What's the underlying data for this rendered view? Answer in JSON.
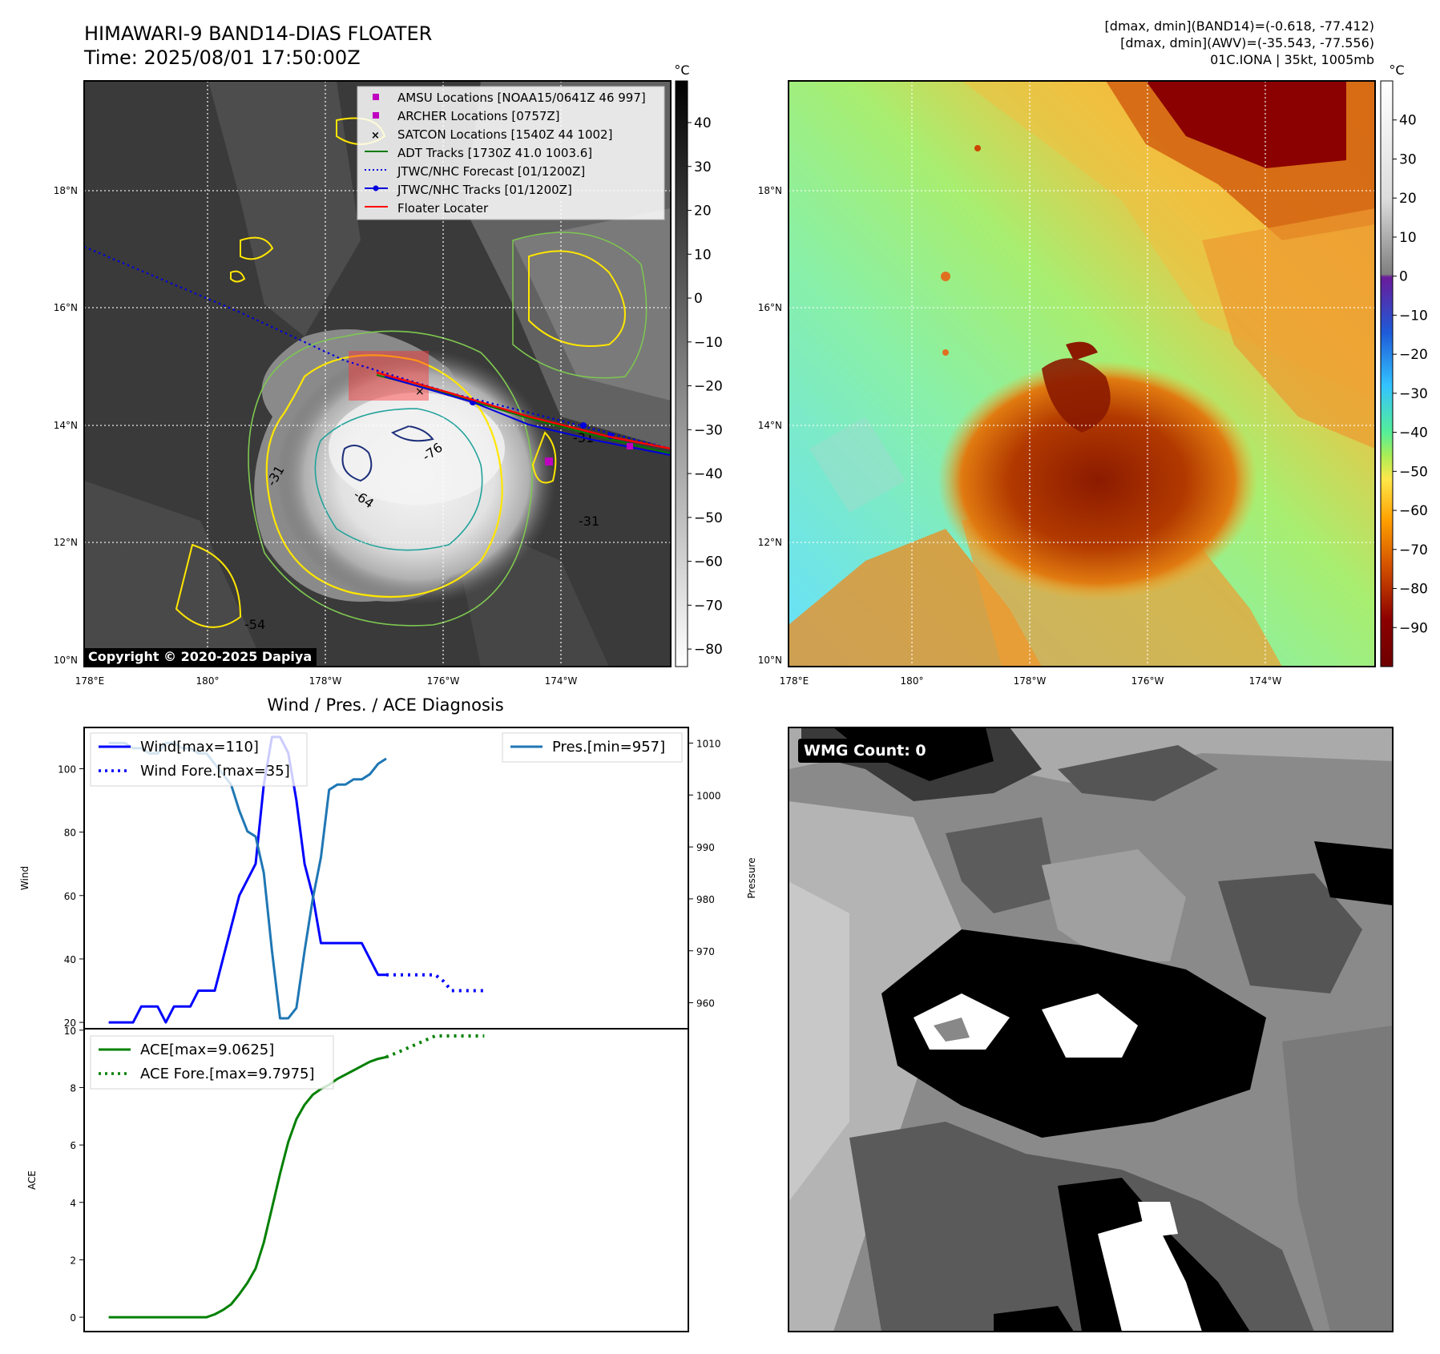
{
  "header": {
    "title": "HIMAWARI-9 BAND14-DIAS FLOATER",
    "time": "Time: 2025/08/01 17:50:00Z",
    "stats": [
      "[dmax, dmin](BAND14)=(-0.618, -77.412)",
      "[dmax, dmin](AWV)=(-35.543, -77.556)",
      "01C.IONA | 35kt, 1005mb"
    ]
  },
  "map_ir": {
    "lat_labels": [
      "18°N",
      "16°N",
      "14°N",
      "12°N",
      "10°N"
    ],
    "lon_labels": [
      "178°E",
      "180°",
      "178°W",
      "176°W",
      "174°W"
    ],
    "colorbar": {
      "unit": "°C",
      "ticks": [
        "40",
        "30",
        "20",
        "10",
        "0",
        "−10",
        "−20",
        "−30",
        "−40",
        "−50",
        "−60",
        "−70",
        "−80"
      ]
    },
    "legend": [
      {
        "label": "AMSU Locations [NOAA15/0641Z 46 997]",
        "color": "#c000c0",
        "marker": "square"
      },
      {
        "label": "ARCHER Locations [0757Z]",
        "color": "#c000c0",
        "marker": "square"
      },
      {
        "label": "SATCON Locations [1540Z 44 1002]",
        "color": "#17becf",
        "marker": "x"
      },
      {
        "label": "ADT Tracks [1730Z 41.0 1003.6]",
        "color": "#007a00",
        "marker": "line"
      },
      {
        "label": "JTWC/NHC Forecast [01/1200Z]",
        "color": "#0000dd",
        "marker": "dotted"
      },
      {
        "label": "JTWC/NHC Tracks [01/1200Z]",
        "color": "#0000dd",
        "marker": "line-dot"
      },
      {
        "label": "Floater Locater",
        "color": "#ff0000",
        "marker": "line"
      }
    ],
    "contour_labels": [
      "-76",
      "-64",
      "-31",
      "-31",
      "-54",
      "-31"
    ],
    "copyright": "Copyright © 2020-2025 Dapiya"
  },
  "map_wv": {
    "lat_labels": [
      "18°N",
      "16°N",
      "14°N",
      "12°N",
      "10°N"
    ],
    "lon_labels": [
      "178°E",
      "180°",
      "178°W",
      "176°W",
      "174°W"
    ],
    "colorbar": {
      "unit": "°C",
      "ticks": [
        "40",
        "30",
        "20",
        "10",
        "0",
        "−10",
        "−20",
        "−30",
        "−40",
        "−50",
        "−60",
        "−70",
        "−80",
        "−90"
      ]
    }
  },
  "wmg": {
    "badge": "WMG Count: 0"
  },
  "chart_data": [
    {
      "type": "line",
      "title": "Wind / Pres. / ACE Diagnosis",
      "ylabel": "Wind",
      "ylabel_right": "Pressure",
      "ylim": [
        18,
        113
      ],
      "ylim_right": [
        955,
        1013
      ],
      "y_ticks": [
        20,
        40,
        60,
        80,
        100
      ],
      "y_ticks_right": [
        960,
        970,
        980,
        990,
        1000,
        1010
      ],
      "legend_left": [
        "Wind[max=110]",
        "Wind Fore.[max=35]"
      ],
      "legend_right": [
        "Pres.[min=957]"
      ],
      "x": [
        0,
        1,
        2,
        3,
        4,
        5,
        6,
        7,
        8,
        9,
        10,
        11,
        12,
        13,
        14,
        15,
        16,
        17,
        18,
        19,
        20,
        21,
        22,
        23,
        24,
        25,
        26,
        27,
        28,
        29,
        30,
        31,
        32,
        33,
        34
      ],
      "series": [
        {
          "name": "Wind[max=110]",
          "color": "#0000ff",
          "style": "solid",
          "x": [
            0,
            1,
            2,
            3,
            4,
            5,
            6,
            7,
            8,
            9,
            10,
            11,
            12,
            13,
            14,
            15,
            16,
            17,
            18,
            19,
            20,
            21,
            22,
            23,
            24,
            25,
            26,
            27,
            28,
            29,
            30,
            31,
            32,
            33,
            34
          ],
          "values": [
            20,
            20,
            20,
            20,
            25,
            25,
            25,
            20,
            25,
            25,
            25,
            30,
            30,
            30,
            40,
            50,
            60,
            65,
            70,
            95,
            110,
            110,
            105,
            90,
            70,
            60,
            45,
            45,
            45,
            45,
            45,
            45,
            40,
            35,
            35
          ]
        },
        {
          "name": "Wind Fore.[max=35]",
          "color": "#0000ff",
          "style": "dotted",
          "x": [
            34,
            37,
            40,
            41,
            42,
            43,
            44,
            46
          ],
          "values": [
            35,
            35,
            35,
            33,
            30,
            30,
            30,
            30
          ]
        },
        {
          "name": "Pres.[min=957]",
          "color": "#1f77b4",
          "style": "solid",
          "axis": "right",
          "x": [
            0,
            1,
            2,
            3,
            4,
            5,
            6,
            7,
            8,
            9,
            10,
            11,
            12,
            13,
            14,
            15,
            16,
            17,
            18,
            19,
            20,
            21,
            22,
            23,
            24,
            25,
            26,
            27,
            28,
            29,
            30,
            31,
            32,
            33,
            34
          ],
          "values": [
            1010,
            1010,
            1010,
            1009,
            1009,
            1008,
            1008,
            1010,
            1010,
            1009,
            1009,
            1008,
            1008,
            1006,
            1004,
            1002,
            997,
            993,
            992,
            985,
            970,
            957,
            957,
            959,
            970,
            980,
            988,
            1001,
            1002,
            1002,
            1003,
            1003,
            1004,
            1006,
            1007
          ]
        }
      ]
    },
    {
      "type": "line",
      "ylabel": "ACE",
      "ylim": [
        -0.5,
        10.05
      ],
      "y_ticks": [
        0,
        2,
        4,
        6,
        8,
        10
      ],
      "legend": [
        "ACE[max=9.0625]",
        "ACE Fore.[max=9.7975]"
      ],
      "series": [
        {
          "name": "ACE[max=9.0625]",
          "color": "#008000",
          "style": "solid",
          "x": [
            0,
            2,
            4,
            6,
            8,
            10,
            12,
            13,
            14,
            15,
            16,
            17,
            18,
            19,
            20,
            21,
            22,
            23,
            24,
            25,
            26,
            27,
            28,
            29,
            30,
            31,
            32,
            33,
            34
          ],
          "values": [
            0,
            0,
            0,
            0,
            0,
            0,
            0,
            0.1,
            0.25,
            0.45,
            0.8,
            1.2,
            1.7,
            2.6,
            3.8,
            5.0,
            6.1,
            6.9,
            7.4,
            7.75,
            7.95,
            8.1,
            8.3,
            8.45,
            8.6,
            8.75,
            8.9,
            9.0,
            9.0625
          ]
        },
        {
          "name": "ACE Fore.[max=9.7975]",
          "color": "#008000",
          "style": "dotted",
          "x": [
            34,
            36,
            38,
            40,
            42,
            44,
            46
          ],
          "values": [
            9.0625,
            9.3,
            9.55,
            9.7975,
            9.7975,
            9.7975,
            9.7975
          ]
        }
      ]
    }
  ]
}
